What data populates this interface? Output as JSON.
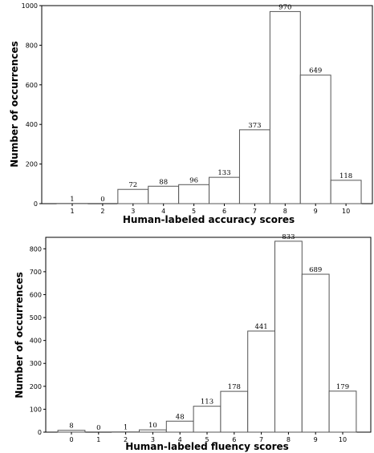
{
  "chart_data": [
    {
      "type": "bar",
      "categories": [
        "1",
        "2",
        "3",
        "4",
        "5",
        "6",
        "7",
        "8",
        "9",
        "10"
      ],
      "values": [
        1,
        0,
        72,
        88,
        96,
        133,
        373,
        970,
        649,
        118
      ],
      "value_labels": [
        "1",
        "0",
        "72",
        "88",
        "96",
        "133",
        "373",
        "970",
        "649",
        "118"
      ],
      "xlabel": "Human-labeled accuracy scores",
      "ylabel": "Number of occurrences",
      "ylim": [
        0,
        1000
      ],
      "yticks": [
        0,
        200,
        400,
        600,
        800,
        1000
      ],
      "grid": false,
      "bar_fill": "#ffffff",
      "bar_stroke": "#555555"
    },
    {
      "type": "bar",
      "categories": [
        "0",
        "1",
        "2",
        "3",
        "4",
        "5",
        "6",
        "7",
        "8",
        "9",
        "10"
      ],
      "values": [
        8,
        0,
        1,
        10,
        48,
        113,
        178,
        441,
        833,
        689,
        179
      ],
      "value_labels": [
        "8",
        "0",
        "1",
        "10",
        "48",
        "113",
        "178",
        "441",
        "833",
        "689",
        "179"
      ],
      "xlabel": "Human-labeled fluency scores",
      "ylabel": "Number of occurrences",
      "ylim": [
        0,
        850
      ],
      "yticks": [
        0,
        100,
        200,
        300,
        400,
        500,
        600,
        700,
        800
      ],
      "grid": false,
      "bar_fill": "#ffffff",
      "bar_stroke": "#555555"
    }
  ]
}
